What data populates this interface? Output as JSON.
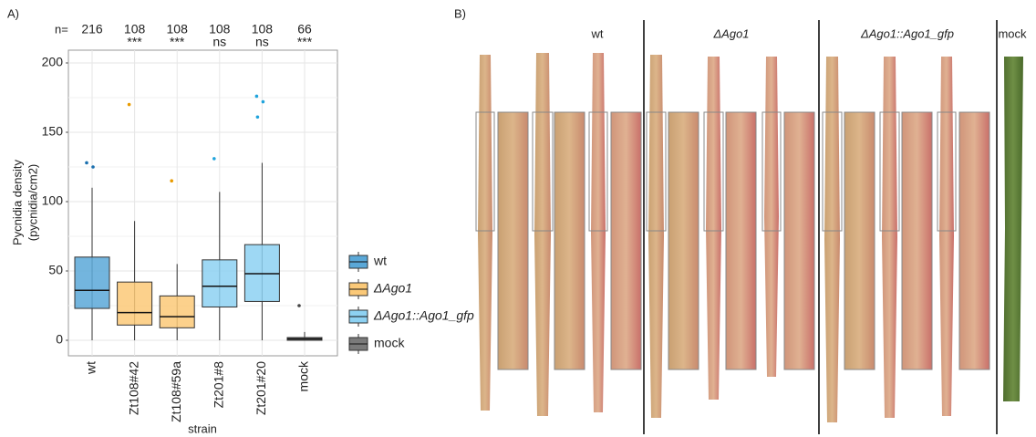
{
  "chart_data": {
    "type": "box",
    "panel_label": "A)",
    "n_prefix": "n=",
    "n_counts": [
      "216",
      "108",
      "108",
      "108",
      "108",
      "66"
    ],
    "significance": [
      null,
      "***",
      "***",
      "ns",
      "ns",
      "***"
    ],
    "y_title": "Pycnidia density",
    "y_subtitle": "(pycnidia/cm2)",
    "x_title": "strain",
    "categories": [
      "wt",
      "Zt108#42",
      "Zt108#59a",
      "Zt201#8",
      "Zt201#20",
      "mock"
    ],
    "groups": [
      0,
      1,
      1,
      2,
      2,
      3
    ],
    "stats": [
      {
        "low": 0,
        "q1": 23,
        "median": 36,
        "q3": 60,
        "high": 110
      },
      {
        "low": 0,
        "q1": 11,
        "median": 20,
        "q3": 42,
        "high": 86
      },
      {
        "low": 0,
        "q1": 9,
        "median": 17,
        "q3": 32,
        "high": 55
      },
      {
        "low": 0,
        "q1": 24,
        "median": 39,
        "q3": 58,
        "high": 107
      },
      {
        "low": 0,
        "q1": 28,
        "median": 48,
        "q3": 69,
        "high": 128
      },
      {
        "low": 0,
        "q1": 0,
        "median": 1,
        "q3": 2,
        "high": 6
      }
    ],
    "outliers": [
      [
        128,
        125
      ],
      [
        170
      ],
      [
        115
      ],
      [
        131
      ],
      [
        176,
        172,
        161
      ],
      [
        25
      ]
    ],
    "series": [
      {
        "name": "wt",
        "color": "#1a6fae",
        "fill": "#5aa8d8"
      },
      {
        "name": "ΔAgo1",
        "color": "#e99b00",
        "fill": "#fbc978"
      },
      {
        "name": "ΔAgo1::Ago1_gfp",
        "color": "#1fa3dc",
        "fill": "#8dd1f2"
      },
      {
        "name": "mock",
        "color": "#444444",
        "fill": "#7a7a7a"
      }
    ],
    "ylim": [
      0,
      200
    ],
    "yticks": [
      0,
      50,
      100,
      150,
      200
    ],
    "grid": true
  },
  "panel_b": {
    "label": "B)",
    "groups": [
      "wt",
      "ΔAgo1",
      "ΔAgo1::Ago1_gfp",
      "mock"
    ]
  }
}
